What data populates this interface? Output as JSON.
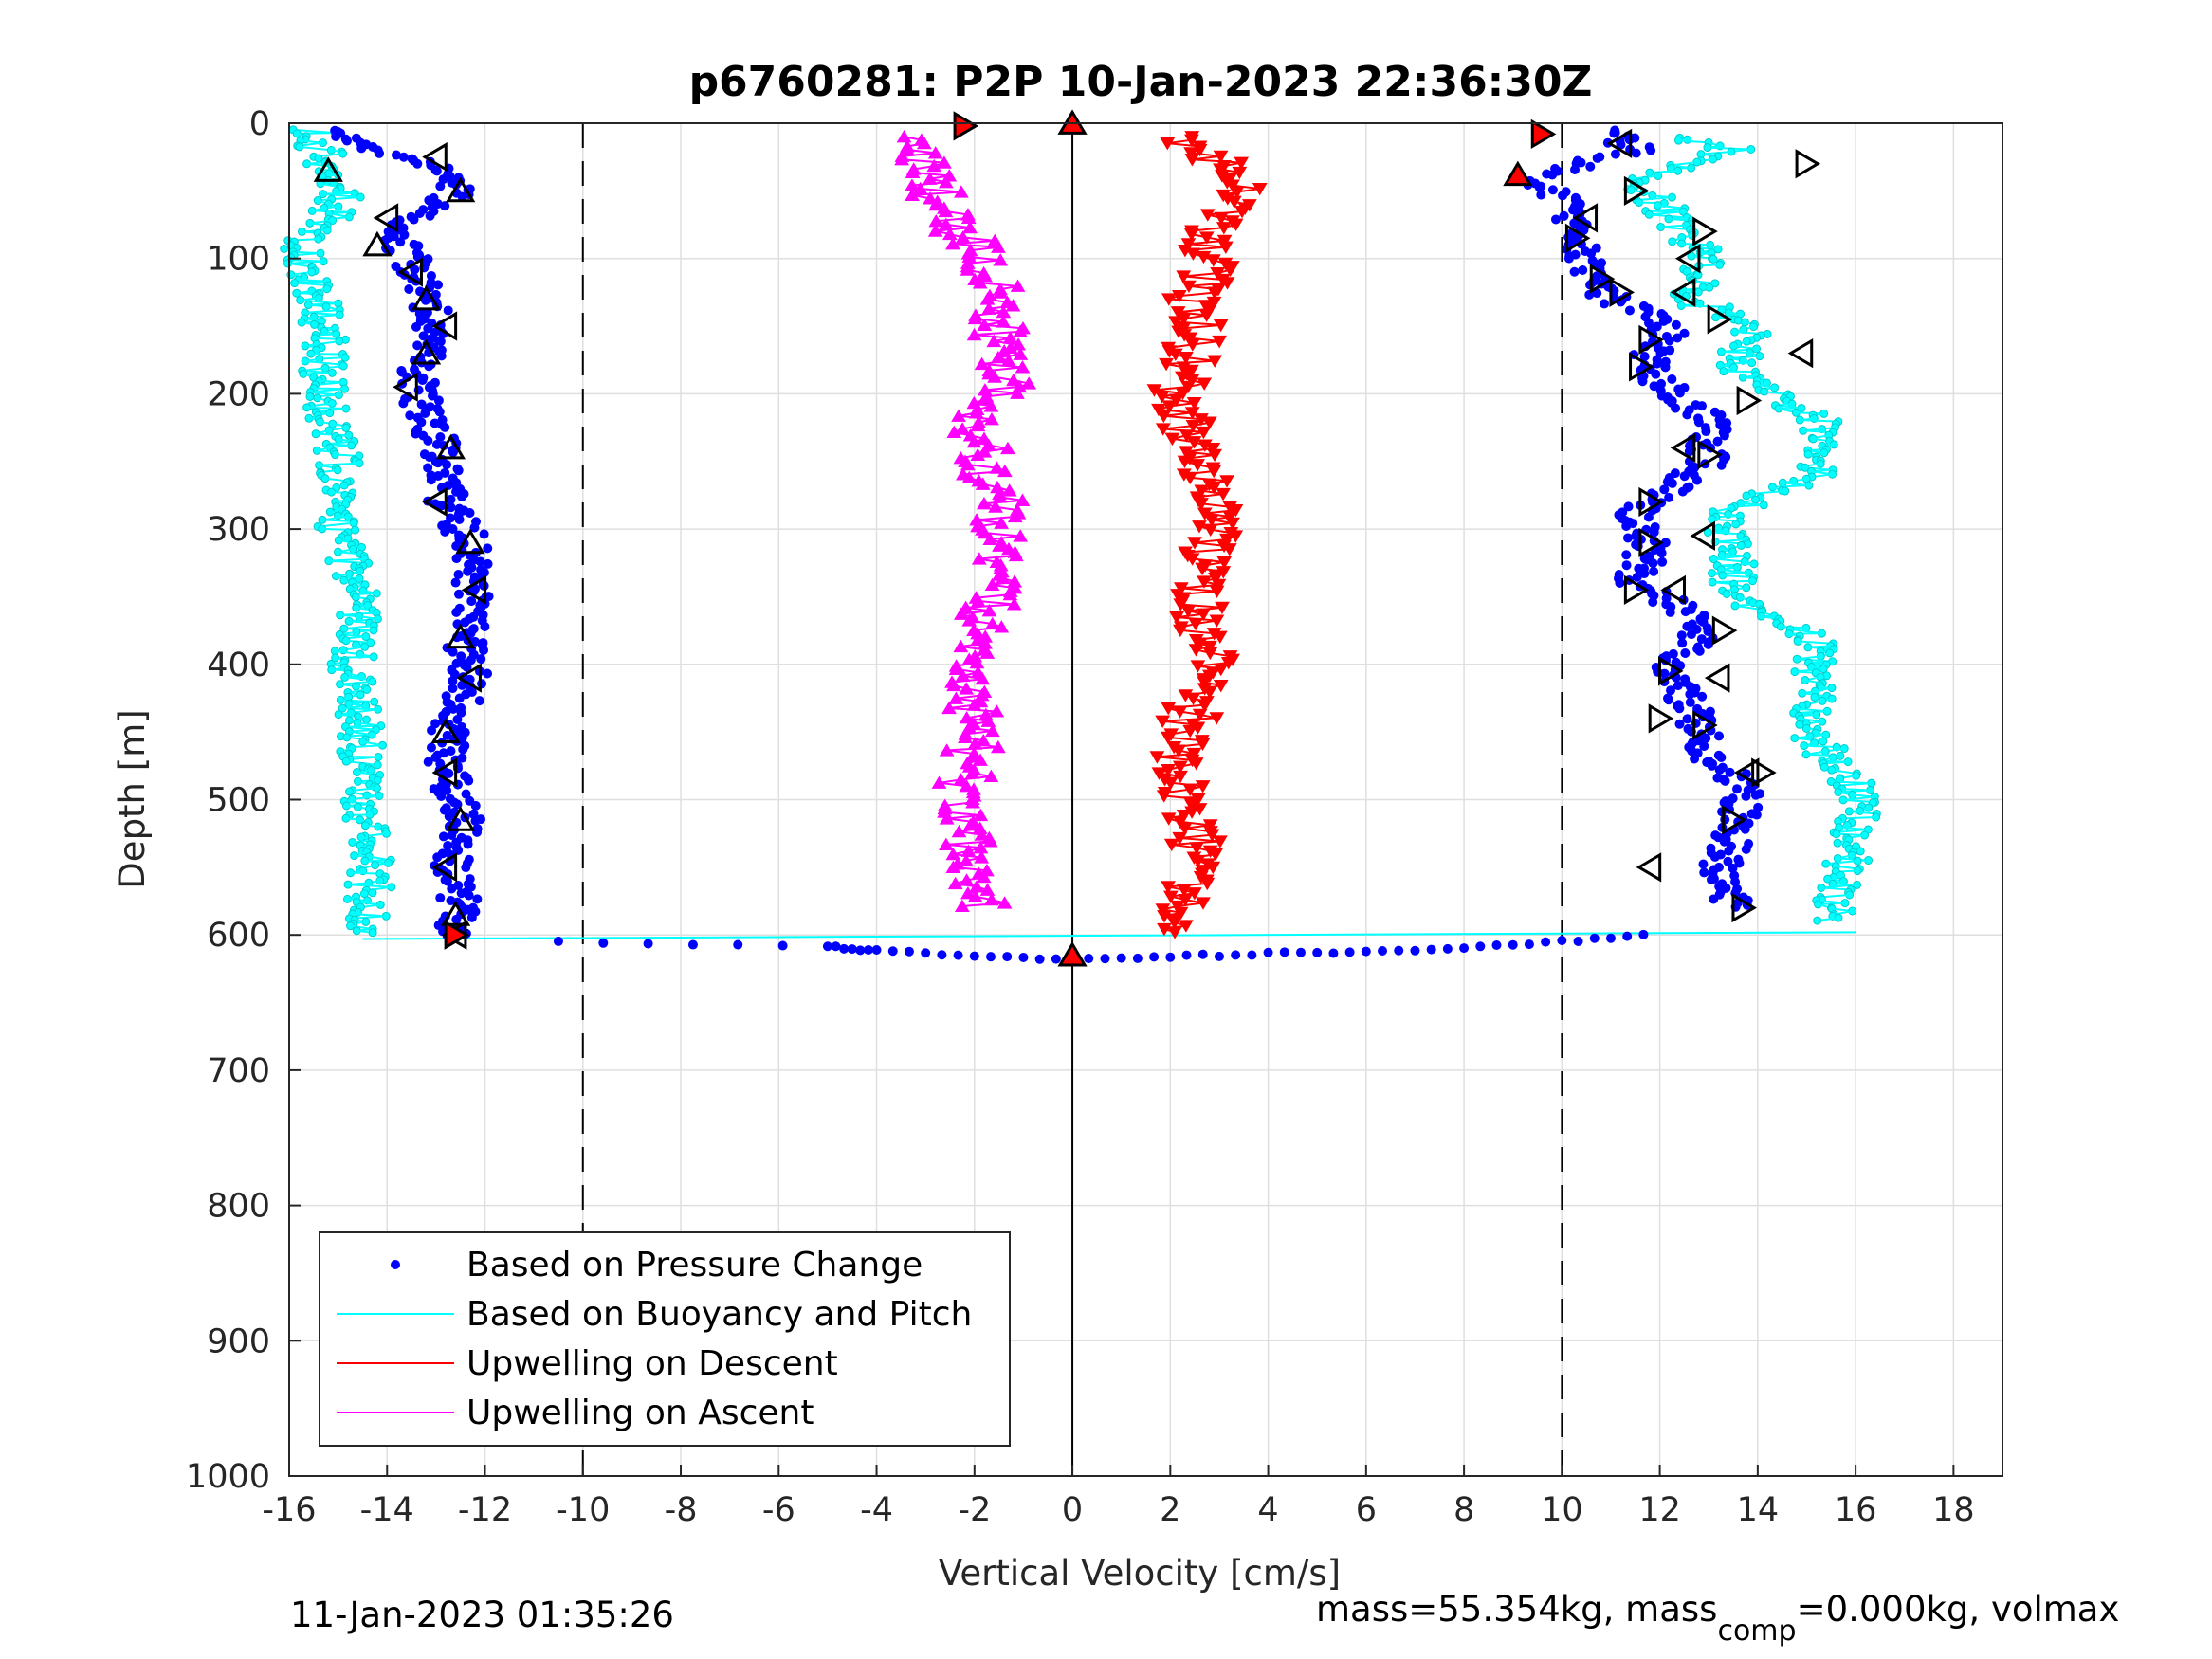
{
  "chart_data": {
    "type": "scatter",
    "title": "p6760281: P2P 10-Jan-2023 22:36:30Z",
    "xlabel": "Vertical Velocity [cm/s]",
    "ylabel": "Depth [m]",
    "xlim": [
      -16,
      19
    ],
    "ylim": [
      0,
      1000
    ],
    "y_reversed": true,
    "x_ticks": [
      "-16",
      "-14",
      "-12",
      "-10",
      "-8",
      "-6",
      "-4",
      "-2",
      "0",
      "2",
      "4",
      "6",
      "8",
      "10",
      "12",
      "14",
      "16",
      "18"
    ],
    "y_ticks": [
      "0",
      "100",
      "200",
      "300",
      "400",
      "500",
      "600",
      "700",
      "800",
      "900",
      "1000"
    ],
    "grid": true,
    "reference_lines": {
      "dashed_x": [
        -10,
        10
      ],
      "solid_x": [
        0
      ]
    },
    "legend": {
      "placement": "bottom-left",
      "entries": [
        {
          "label": "Based on Pressure Change",
          "color": "#0000ff",
          "style": "dot"
        },
        {
          "label": "Based on Buoyancy and Pitch",
          "color": "#00ffff",
          "style": "line"
        },
        {
          "label": "Upwelling on Descent",
          "color": "#ff0000",
          "style": "line"
        },
        {
          "label": "Upwelling on Ascent",
          "color": "#ff00ff",
          "style": "line"
        }
      ]
    },
    "series": [
      {
        "name": "Based on Pressure Change",
        "color": "#0000ff",
        "marker": "dot",
        "descent_profile": [
          [
            -15.3,
            5
          ],
          [
            -14.5,
            20
          ],
          [
            -13.2,
            30
          ],
          [
            -12.6,
            50
          ],
          [
            -13.8,
            75
          ],
          [
            -13.6,
            95
          ],
          [
            -13.2,
            120
          ],
          [
            -13.0,
            150
          ],
          [
            -13.3,
            180
          ],
          [
            -13.4,
            200
          ],
          [
            -12.9,
            240
          ],
          [
            -12.8,
            280
          ],
          [
            -12.3,
            310
          ],
          [
            -12.2,
            340
          ],
          [
            -12.4,
            380
          ],
          [
            -12.3,
            410
          ],
          [
            -12.8,
            450
          ],
          [
            -12.8,
            480
          ],
          [
            -12.4,
            515
          ],
          [
            -12.7,
            550
          ],
          [
            -12.5,
            580
          ],
          [
            -12.6,
            600
          ]
        ],
        "bottom_profile": [
          [
            -10.5,
            605
          ],
          [
            -5,
            608
          ],
          [
            -4,
            612
          ],
          [
            -2,
            615
          ],
          [
            0,
            618
          ],
          [
            2,
            616
          ],
          [
            4,
            614
          ],
          [
            6,
            612
          ],
          [
            8,
            610
          ],
          [
            10,
            605
          ],
          [
            12,
            598
          ]
        ],
        "ascent_profile": [
          [
            11.0,
            5
          ],
          [
            11.5,
            20
          ],
          [
            9.3,
            40
          ],
          [
            10.3,
            60
          ],
          [
            10.2,
            85
          ],
          [
            10.6,
            110
          ],
          [
            11.0,
            130
          ],
          [
            12.2,
            150
          ],
          [
            11.8,
            175
          ],
          [
            12.0,
            190
          ],
          [
            13.0,
            220
          ],
          [
            13.0,
            250
          ],
          [
            11.5,
            290
          ],
          [
            11.8,
            310
          ],
          [
            11.5,
            340
          ],
          [
            12.5,
            360
          ],
          [
            12.8,
            380
          ],
          [
            12.2,
            400
          ],
          [
            12.5,
            420
          ],
          [
            12.8,
            450
          ],
          [
            13.0,
            470
          ],
          [
            13.8,
            490
          ],
          [
            13.6,
            510
          ],
          [
            13.5,
            530
          ],
          [
            13.2,
            550
          ],
          [
            13.5,
            580
          ]
        ]
      },
      {
        "name": "Based on Buoyancy and Pitch",
        "color": "#00ffff",
        "marker": "line",
        "descent_profile": [
          [
            -15.5,
            5
          ],
          [
            -15.2,
            35
          ],
          [
            -14.8,
            50
          ],
          [
            -15.8,
            95
          ],
          [
            -15.3,
            140
          ],
          [
            -15.3,
            200
          ],
          [
            -15.0,
            250
          ],
          [
            -15.0,
            300
          ],
          [
            -14.5,
            350
          ],
          [
            -14.7,
            400
          ],
          [
            -14.5,
            450
          ],
          [
            -14.6,
            500
          ],
          [
            -14.3,
            550
          ],
          [
            -14.5,
            600
          ]
        ],
        "ascent_profile": [
          [
            12.0,
            10
          ],
          [
            13.5,
            20
          ],
          [
            11.5,
            40
          ],
          [
            12.5,
            80
          ],
          [
            13.0,
            100
          ],
          [
            12.5,
            130
          ],
          [
            14.0,
            150
          ],
          [
            13.5,
            180
          ],
          [
            15.2,
            220
          ],
          [
            15.3,
            260
          ],
          [
            13.2,
            290
          ],
          [
            13.5,
            320
          ],
          [
            13.5,
            350
          ],
          [
            15.2,
            380
          ],
          [
            15.2,
            420
          ],
          [
            15.0,
            450
          ],
          [
            16.0,
            490
          ],
          [
            16.0,
            520
          ],
          [
            15.8,
            550
          ],
          [
            15.5,
            590
          ]
        ]
      },
      {
        "name": "Upwelling on Descent",
        "color": "#ff0000",
        "marker": "triangle-down",
        "profile": [
          [
            2.0,
            10
          ],
          [
            3.5,
            40
          ],
          [
            3.0,
            70
          ],
          [
            2.8,
            100
          ],
          [
            2.5,
            130
          ],
          [
            2.5,
            160
          ],
          [
            2.2,
            200
          ],
          [
            2.5,
            240
          ],
          [
            2.8,
            280
          ],
          [
            2.8,
            320
          ],
          [
            2.6,
            360
          ],
          [
            2.8,
            400
          ],
          [
            2.4,
            440
          ],
          [
            2.1,
            470
          ],
          [
            2.2,
            500
          ],
          [
            2.5,
            530
          ],
          [
            2.3,
            560
          ],
          [
            2.0,
            600
          ]
        ]
      },
      {
        "name": "Upwelling on Ascent",
        "color": "#ff00ff",
        "marker": "triangle-up",
        "profile": [
          [
            -3.0,
            10
          ],
          [
            -3.0,
            40
          ],
          [
            -2.5,
            70
          ],
          [
            -1.8,
            100
          ],
          [
            -1.5,
            130
          ],
          [
            -1.5,
            160
          ],
          [
            -1.2,
            190
          ],
          [
            -2.0,
            220
          ],
          [
            -1.8,
            250
          ],
          [
            -1.5,
            280
          ],
          [
            -1.5,
            310
          ],
          [
            -1.5,
            340
          ],
          [
            -1.8,
            370
          ],
          [
            -2.0,
            400
          ],
          [
            -2.0,
            430
          ],
          [
            -2.0,
            460
          ],
          [
            -2.2,
            490
          ],
          [
            -2.3,
            520
          ],
          [
            -2.0,
            550
          ],
          [
            -1.8,
            580
          ]
        ]
      }
    ],
    "event_markers": {
      "style": "open black triangles",
      "descent": [
        [
          -15.2,
          35
        ],
        [
          -13.0,
          25
        ],
        [
          -12.5,
          50
        ],
        [
          -14.0,
          70
        ],
        [
          -14.2,
          90
        ],
        [
          -13.5,
          110
        ],
        [
          -13.2,
          130
        ],
        [
          -12.8,
          150
        ],
        [
          -13.2,
          170
        ],
        [
          -13.6,
          195
        ],
        [
          -12.7,
          240
        ],
        [
          -13.0,
          280
        ],
        [
          -12.3,
          310
        ],
        [
          -12.2,
          345
        ],
        [
          -12.5,
          380
        ],
        [
          -12.3,
          410
        ],
        [
          -12.8,
          450
        ],
        [
          -12.8,
          480
        ],
        [
          -12.5,
          515
        ],
        [
          -12.8,
          550
        ],
        [
          -12.6,
          585
        ],
        [
          -12.6,
          600
        ]
      ],
      "ascent": [
        [
          11.2,
          15
        ],
        [
          15.0,
          30
        ],
        [
          11.5,
          50
        ],
        [
          10.5,
          70
        ],
        [
          12.9,
          80
        ],
        [
          10.3,
          85
        ],
        [
          12.6,
          100
        ],
        [
          10.8,
          115
        ],
        [
          11.2,
          125
        ],
        [
          12.5,
          125
        ],
        [
          13.2,
          145
        ],
        [
          11.8,
          160
        ],
        [
          14.9,
          170
        ],
        [
          11.6,
          180
        ],
        [
          13.8,
          205
        ],
        [
          12.5,
          240
        ],
        [
          13.0,
          245
        ],
        [
          11.8,
          280
        ],
        [
          12.9,
          305
        ],
        [
          11.8,
          310
        ],
        [
          11.5,
          345
        ],
        [
          12.3,
          345
        ],
        [
          13.3,
          375
        ],
        [
          12.2,
          405
        ],
        [
          13.2,
          410
        ],
        [
          12.0,
          440
        ],
        [
          12.9,
          445
        ],
        [
          13.8,
          480
        ],
        [
          14.1,
          480
        ],
        [
          13.5,
          515
        ],
        [
          11.8,
          550
        ],
        [
          13.7,
          580
        ]
      ],
      "filled_red": [
        [
          -2.2,
          2
        ],
        [
          0.0,
          0
        ],
        [
          9.6,
          8
        ],
        [
          9.1,
          38
        ],
        [
          -12.6,
          600
        ],
        [
          0.0,
          615
        ]
      ]
    }
  },
  "footer": {
    "left": "11-Jan-2023 01:35:26",
    "right_before_sub": "mass=55.354kg, mass",
    "right_sub": "comp",
    "right_after_sub": "=0.000kg, volmax"
  }
}
